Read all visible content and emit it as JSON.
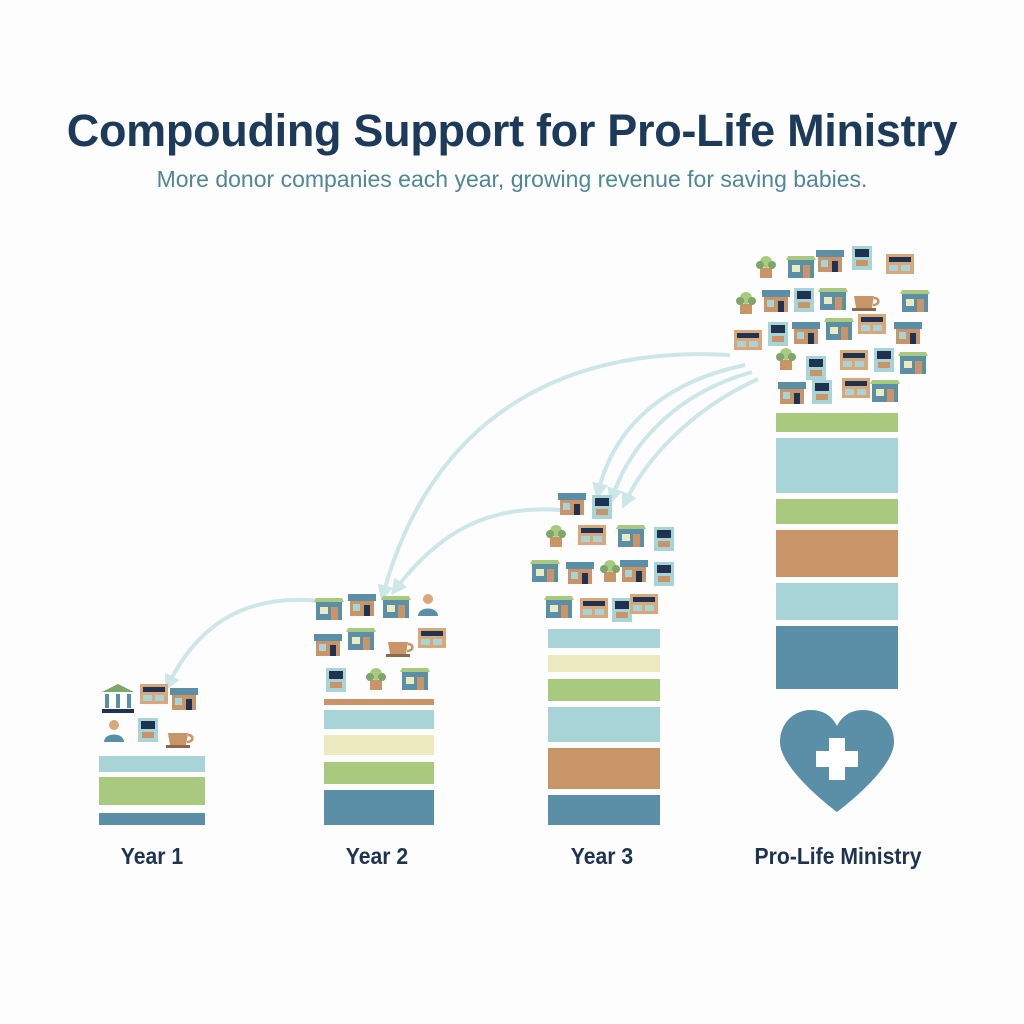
{
  "title": "Compouding Support for Pro-Life Ministry",
  "subtitle": "More donor companies each year, growing revenue for saving babies.",
  "columns": [
    {
      "label": "Year 1"
    },
    {
      "label": "Year 2"
    },
    {
      "label": "Year 3"
    },
    {
      "label": "Pro-Life Ministry"
    }
  ],
  "colors": {
    "title": "#1d3a5b",
    "subtitle": "#4f8798",
    "steel_blue": "#5b8fa8",
    "light_teal": "#a8d4d8",
    "green": "#a9c97e",
    "cream": "#ecebc0",
    "terracotta": "#c99467",
    "arrow": "#cde6e8"
  },
  "icons": {
    "year1": [
      "bank-icon",
      "storefront-icon",
      "shop-icon",
      "worker-icon",
      "register-icon",
      "coffee-cup-icon"
    ],
    "ministry": "heart-plus-icon"
  }
}
